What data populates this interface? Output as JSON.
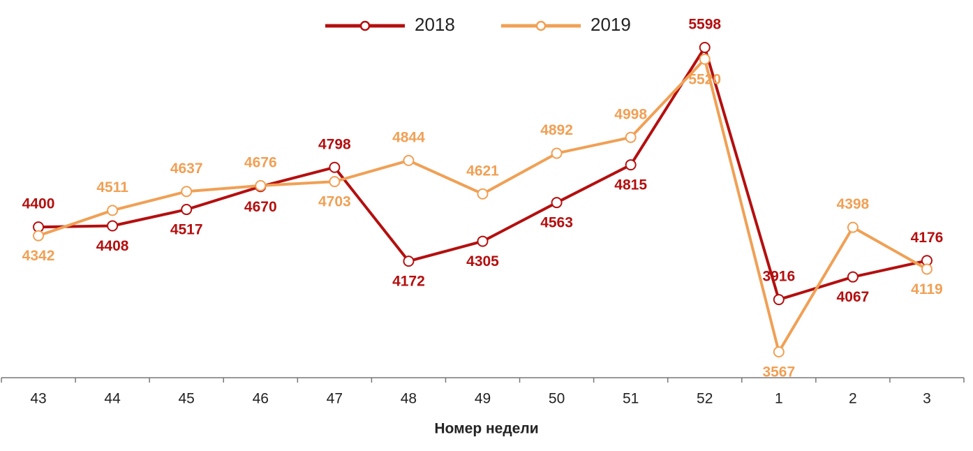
{
  "chart_data": {
    "type": "line",
    "x_label": "Номер недели",
    "categories": [
      "43",
      "44",
      "45",
      "46",
      "47",
      "48",
      "49",
      "50",
      "51",
      "52",
      "1",
      "2",
      "3"
    ],
    "series": [
      {
        "name": "2018",
        "color": "#b40f0f",
        "values": [
          4400,
          4408,
          4517,
          4670,
          4798,
          4172,
          4305,
          4563,
          4815,
          5598,
          3916,
          4067,
          4176
        ]
      },
      {
        "name": "2019",
        "color": "#f0a055",
        "values": [
          4342,
          4511,
          4637,
          4676,
          4703,
          4844,
          4621,
          4892,
          4998,
          5520,
          3567,
          4398,
          4119
        ]
      }
    ],
    "legend": "top"
  }
}
